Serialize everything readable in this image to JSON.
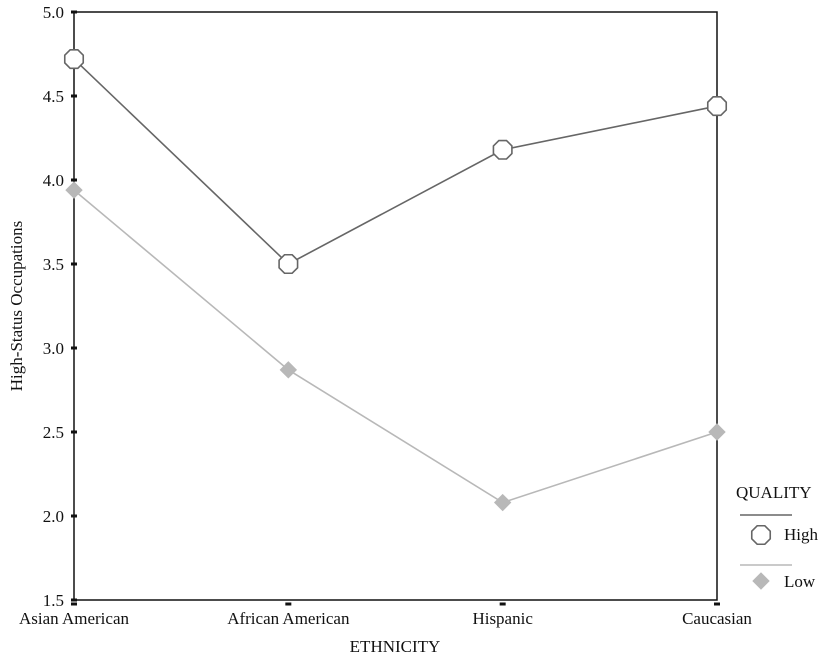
{
  "chart_data": {
    "type": "line",
    "title": "",
    "xlabel": "ETHNICITY",
    "ylabel": "High-Status Occupations",
    "categories": [
      "Asian American",
      "African American",
      "Hispanic",
      "Caucasian"
    ],
    "ylim": [
      1.5,
      5.0
    ],
    "yticks": [
      "1.5",
      "2.0",
      "2.5",
      "3.0",
      "3.5",
      "4.0",
      "4.5",
      "5.0"
    ],
    "grid": false,
    "legend": {
      "title": "QUALITY",
      "position": "right"
    },
    "series": [
      {
        "name": "High",
        "marker": "octagon",
        "color": "#666666",
        "values": [
          4.72,
          3.5,
          4.18,
          4.44
        ]
      },
      {
        "name": "Low",
        "marker": "diamond",
        "color": "#b8b8b8",
        "values": [
          3.94,
          2.87,
          2.08,
          2.5
        ]
      }
    ]
  }
}
